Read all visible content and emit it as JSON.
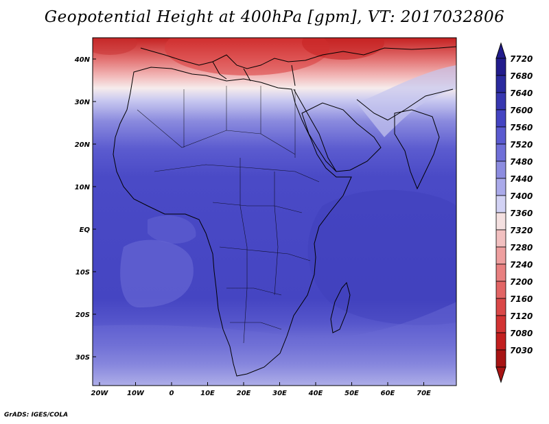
{
  "title": "Geopotential Height at 400hPa [gpm], VT: 2017032806",
  "credit": "GrADS: IGES/COLA",
  "map": {
    "lon_ticks": [
      "20W",
      "10W",
      "0",
      "10E",
      "20E",
      "30E",
      "40E",
      "50E",
      "60E",
      "70E"
    ],
    "lat_ticks": [
      "40N",
      "30N",
      "20N",
      "10N",
      "EQ",
      "10S",
      "20S",
      "30S"
    ],
    "bands": [
      {
        "label": "7720",
        "color": "#221c8c"
      },
      {
        "label": "7680",
        "color": "#2a2a9e"
      },
      {
        "label": "7640",
        "color": "#3737b0"
      },
      {
        "label": "7600",
        "color": "#4444c2"
      },
      {
        "label": "7560",
        "color": "#5a5ad0"
      },
      {
        "label": "7520",
        "color": "#6f6fd8"
      },
      {
        "label": "7480",
        "color": "#8c8ce0"
      },
      {
        "label": "7440",
        "color": "#aaaaea"
      },
      {
        "label": "7400",
        "color": "#d2d2f4"
      },
      {
        "label": "7360",
        "color": "#f4e0e0"
      },
      {
        "label": "7320",
        "color": "#f2c0c0"
      },
      {
        "label": "7280",
        "color": "#ee9f9f"
      },
      {
        "label": "7240",
        "color": "#e88080"
      },
      {
        "label": "7200",
        "color": "#e26565"
      },
      {
        "label": "7160",
        "color": "#da4848"
      },
      {
        "label": "7120",
        "color": "#d23333"
      },
      {
        "label": "7080",
        "color": "#c21f1f"
      },
      {
        "label": "7030",
        "color": "#a81414"
      }
    ]
  }
}
